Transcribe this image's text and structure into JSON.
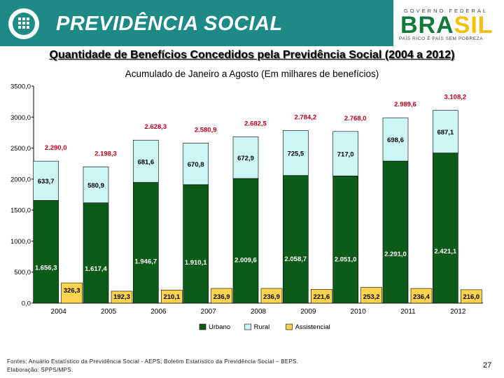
{
  "header": {
    "brand": "PREVIDÊNCIA SOCIAL"
  },
  "government": {
    "line": "GOVERNO FEDERAL",
    "country_a": "BRA",
    "country_b": "SIL",
    "slogan": "PAÍS RICO É PAÍS SEM POBREZA"
  },
  "chart_data": {
    "type": "bar",
    "title": "Quantidade de Benefícios Concedidos pela Previdência Social (2004 a 2012)",
    "subtitle": "Acumulado de Janeiro a Agosto (Em milhares de benefícios)",
    "categories": [
      "2004",
      "2005",
      "2006",
      "2007",
      "2008",
      "2009",
      "2010",
      "2011",
      "2012"
    ],
    "series": [
      {
        "name": "Urbano",
        "color": "#0d5a19",
        "values": [
          1656.3,
          1617.4,
          1946.7,
          1910.1,
          2009.6,
          2058.7,
          2051.0,
          2291.0,
          2421.1
        ],
        "labels": [
          "1.656,3",
          "1.617,4",
          "1.946,7",
          "1.910,1",
          "2.009,6",
          "2.058,7",
          "2.051,0",
          "2.291,0",
          "2.421,1"
        ]
      },
      {
        "name": "Rural",
        "color": "#ccf6f6",
        "values": [
          633.7,
          580.9,
          681.6,
          670.8,
          672.9,
          725.5,
          717.0,
          698.6,
          687.1
        ],
        "labels": [
          "633,7",
          "580,9",
          "681,6",
          "670,8",
          "672,9",
          "725,5",
          "717,0",
          "698,6",
          "687,1"
        ]
      },
      {
        "name": "Assistencial",
        "color": "#ffd34d",
        "values": [
          326.3,
          192.3,
          210.1,
          236.9,
          236.9,
          221.6,
          253.2,
          236.4,
          216.0
        ],
        "labels": [
          "326,3",
          "192,3",
          "210,1",
          "236,9",
          "236,9",
          "221,6",
          "253,2",
          "236,4",
          "216,0"
        ]
      }
    ],
    "totals": [
      2290.0,
      2198.3,
      2628.3,
      2580.9,
      2682.5,
      2784.2,
      2768.0,
      2989.6,
      3108.2
    ],
    "total_labels": [
      "2.290,0",
      "2.198,3",
      "2.628,3",
      "2.580,9",
      "2.682,5",
      "2.784,2",
      "2.768,0",
      "2.989,6",
      "3.108,2"
    ],
    "total_color": "#c0001a",
    "ylim": [
      0,
      3500
    ],
    "yticks": [
      "0,0",
      "500,0",
      "1000,0",
      "1500,0",
      "2000,0",
      "2500,0",
      "3000,0",
      "3500,0"
    ],
    "ytick_values": [
      0,
      500,
      1000,
      1500,
      2000,
      2500,
      3000,
      3500
    ],
    "legend_position": "bottom-center"
  },
  "footer": {
    "source": "Fontes: Anuário Estatístico da Previdência Social - AEPS; Boletim Estatístico da Previdência Social – BEPS.",
    "prepared_by": "Elaboração: SPPS/MPS.",
    "page_number": "27"
  }
}
